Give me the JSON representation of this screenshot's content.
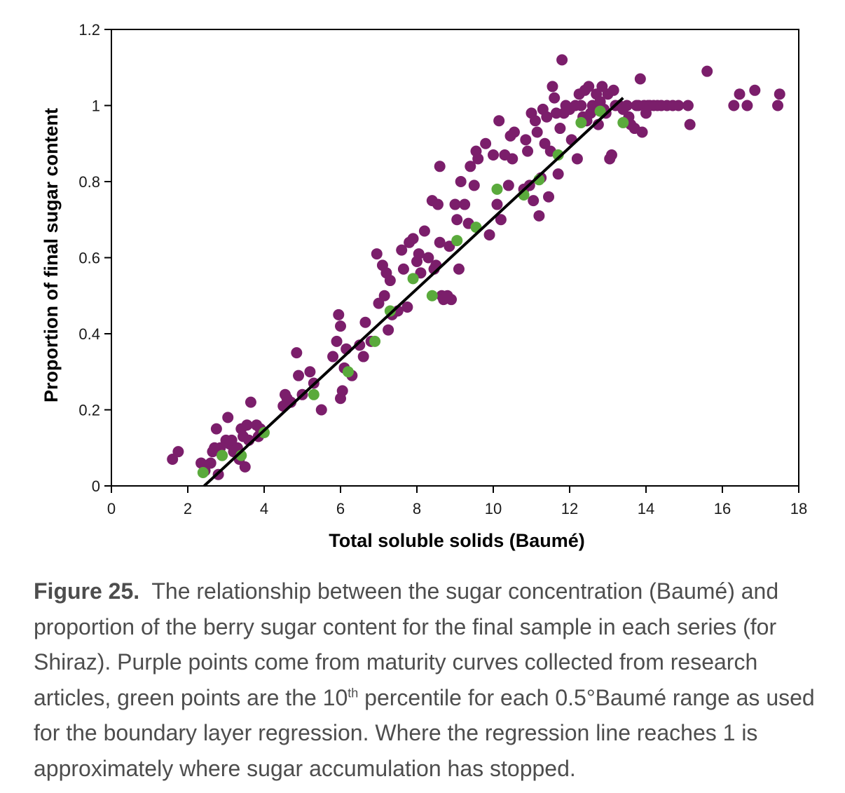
{
  "chart_data": {
    "type": "scatter",
    "xlabel": "Total soluble solids (Baumé)",
    "ylabel": "Proportion of final sugar content",
    "xlim": [
      0,
      18
    ],
    "ylim": [
      0,
      1.2
    ],
    "x_ticks": [
      "0",
      "2",
      "4",
      "6",
      "8",
      "10",
      "12",
      "14",
      "16",
      "18"
    ],
    "y_ticks": [
      "0",
      "0.2",
      "0.4",
      "0.6",
      "0.8",
      "1",
      "1.2"
    ],
    "grid": false,
    "colors": {
      "purple": "#7b1e6b",
      "green": "#5aaa3c",
      "line": "#000000"
    },
    "series": [
      {
        "color": "purple",
        "points": [
          [
            1.6,
            0.07
          ],
          [
            1.75,
            0.09
          ],
          [
            2.35,
            0.06
          ],
          [
            2.45,
            0.04
          ],
          [
            2.6,
            0.06
          ],
          [
            2.65,
            0.09
          ],
          [
            2.7,
            0.1
          ],
          [
            2.75,
            0.15
          ],
          [
            2.8,
            0.03
          ],
          [
            2.85,
            0.1
          ],
          [
            2.9,
            0.08
          ],
          [
            3.0,
            0.12
          ],
          [
            3.05,
            0.18
          ],
          [
            3.1,
            0.11
          ],
          [
            3.15,
            0.12
          ],
          [
            3.2,
            0.09
          ],
          [
            3.3,
            0.1
          ],
          [
            3.35,
            0.07
          ],
          [
            3.4,
            0.15
          ],
          [
            3.45,
            0.13
          ],
          [
            3.5,
            0.05
          ],
          [
            3.55,
            0.16
          ],
          [
            3.6,
            0.12
          ],
          [
            3.65,
            0.22
          ],
          [
            3.8,
            0.16
          ],
          [
            3.85,
            0.13
          ],
          [
            3.9,
            0.15
          ],
          [
            4.5,
            0.21
          ],
          [
            4.55,
            0.24
          ],
          [
            4.6,
            0.23
          ],
          [
            4.7,
            0.22
          ],
          [
            4.85,
            0.35
          ],
          [
            4.9,
            0.29
          ],
          [
            5.0,
            0.24
          ],
          [
            5.2,
            0.3
          ],
          [
            5.3,
            0.27
          ],
          [
            5.5,
            0.2
          ],
          [
            5.8,
            0.34
          ],
          [
            5.9,
            0.38
          ],
          [
            5.95,
            0.45
          ],
          [
            6.0,
            0.42
          ],
          [
            6.0,
            0.23
          ],
          [
            6.05,
            0.25
          ],
          [
            6.1,
            0.31
          ],
          [
            6.15,
            0.36
          ],
          [
            6.3,
            0.29
          ],
          [
            6.5,
            0.37
          ],
          [
            6.6,
            0.34
          ],
          [
            6.65,
            0.43
          ],
          [
            6.8,
            0.38
          ],
          [
            6.95,
            0.61
          ],
          [
            7.0,
            0.48
          ],
          [
            7.1,
            0.58
          ],
          [
            7.15,
            0.5
          ],
          [
            7.2,
            0.56
          ],
          [
            7.25,
            0.41
          ],
          [
            7.3,
            0.54
          ],
          [
            7.35,
            0.45
          ],
          [
            7.5,
            0.46
          ],
          [
            7.6,
            0.62
          ],
          [
            7.65,
            0.57
          ],
          [
            7.75,
            0.47
          ],
          [
            7.8,
            0.64
          ],
          [
            7.9,
            0.65
          ],
          [
            8.0,
            0.59
          ],
          [
            8.05,
            0.61
          ],
          [
            8.1,
            0.56
          ],
          [
            8.2,
            0.67
          ],
          [
            8.3,
            0.6
          ],
          [
            8.4,
            0.75
          ],
          [
            8.45,
            0.57
          ],
          [
            8.5,
            0.58
          ],
          [
            8.55,
            0.74
          ],
          [
            8.6,
            0.84
          ],
          [
            8.6,
            0.64
          ],
          [
            8.65,
            0.5
          ],
          [
            8.7,
            0.49
          ],
          [
            8.8,
            0.5
          ],
          [
            8.85,
            0.63
          ],
          [
            8.9,
            0.49
          ],
          [
            9.0,
            0.74
          ],
          [
            9.05,
            0.7
          ],
          [
            9.1,
            0.57
          ],
          [
            9.15,
            0.8
          ],
          [
            9.25,
            0.74
          ],
          [
            9.35,
            0.69
          ],
          [
            9.4,
            0.84
          ],
          [
            9.5,
            0.79
          ],
          [
            9.55,
            0.88
          ],
          [
            9.6,
            0.86
          ],
          [
            9.8,
            0.9
          ],
          [
            9.9,
            0.66
          ],
          [
            10.0,
            0.87
          ],
          [
            10.1,
            0.74
          ],
          [
            10.15,
            0.96
          ],
          [
            10.2,
            0.7
          ],
          [
            10.3,
            0.87
          ],
          [
            10.4,
            0.79
          ],
          [
            10.45,
            0.92
          ],
          [
            10.5,
            0.86
          ],
          [
            10.55,
            0.93
          ],
          [
            10.8,
            0.78
          ],
          [
            10.85,
            0.91
          ],
          [
            10.9,
            0.88
          ],
          [
            10.95,
            0.79
          ],
          [
            11.0,
            0.98
          ],
          [
            11.05,
            0.75
          ],
          [
            11.1,
            0.96
          ],
          [
            11.15,
            0.93
          ],
          [
            11.2,
            0.71
          ],
          [
            11.25,
            0.81
          ],
          [
            11.3,
            0.99
          ],
          [
            11.35,
            0.9
          ],
          [
            11.4,
            0.97
          ],
          [
            11.45,
            0.76
          ],
          [
            11.5,
            0.88
          ],
          [
            11.55,
            1.05
          ],
          [
            11.6,
            1.02
          ],
          [
            11.65,
            0.98
          ],
          [
            11.7,
            0.82
          ],
          [
            11.75,
            0.94
          ],
          [
            11.8,
            1.12
          ],
          [
            11.85,
            0.98
          ],
          [
            11.9,
            1.0
          ],
          [
            12.0,
            0.99
          ],
          [
            12.05,
            0.91
          ],
          [
            12.15,
            1.0
          ],
          [
            12.2,
            0.86
          ],
          [
            12.25,
            1.03
          ],
          [
            12.3,
            1.0
          ],
          [
            12.35,
            0.97
          ],
          [
            12.4,
            1.04
          ],
          [
            12.45,
            0.96
          ],
          [
            12.5,
            1.05
          ],
          [
            12.55,
            0.98
          ],
          [
            12.6,
            1.0
          ],
          [
            12.65,
            0.99
          ],
          [
            12.7,
            1.03
          ],
          [
            12.75,
            0.95
          ],
          [
            12.8,
            1.01
          ],
          [
            12.85,
            1.05
          ],
          [
            12.9,
            0.99
          ],
          [
            12.95,
            0.98
          ],
          [
            13.0,
            1.03
          ],
          [
            13.05,
            0.86
          ],
          [
            13.1,
            0.87
          ],
          [
            13.15,
            1.04
          ],
          [
            13.2,
            1.0
          ],
          [
            13.3,
            1.0
          ],
          [
            13.4,
            0.99
          ],
          [
            13.5,
            1.0
          ],
          [
            13.55,
            0.97
          ],
          [
            13.6,
            0.95
          ],
          [
            13.7,
            0.94
          ],
          [
            13.75,
            1.0
          ],
          [
            13.8,
            1.0
          ],
          [
            13.85,
            1.07
          ],
          [
            13.9,
            0.93
          ],
          [
            13.95,
            1.0
          ],
          [
            14.0,
            0.98
          ],
          [
            14.05,
            1.0
          ],
          [
            14.1,
            1.0
          ],
          [
            14.2,
            1.0
          ],
          [
            14.3,
            1.0
          ],
          [
            14.4,
            1.0
          ],
          [
            14.55,
            1.0
          ],
          [
            14.7,
            1.0
          ],
          [
            14.85,
            1.0
          ],
          [
            15.1,
            1.0
          ],
          [
            15.15,
            0.95
          ],
          [
            15.6,
            1.09
          ],
          [
            16.3,
            1.0
          ],
          [
            16.45,
            1.03
          ],
          [
            16.65,
            1.0
          ],
          [
            16.85,
            1.04
          ],
          [
            17.45,
            1.0
          ],
          [
            17.5,
            1.03
          ]
        ]
      },
      {
        "color": "green",
        "points": [
          [
            2.4,
            0.035
          ],
          [
            2.9,
            0.08
          ],
          [
            3.4,
            0.08
          ],
          [
            4.0,
            0.14
          ],
          [
            5.3,
            0.24
          ],
          [
            6.2,
            0.3
          ],
          [
            6.9,
            0.38
          ],
          [
            7.3,
            0.46
          ],
          [
            7.9,
            0.545
          ],
          [
            8.4,
            0.5
          ],
          [
            9.05,
            0.645
          ],
          [
            9.55,
            0.68
          ],
          [
            10.1,
            0.78
          ],
          [
            10.8,
            0.765
          ],
          [
            11.2,
            0.805
          ],
          [
            11.7,
            0.87
          ],
          [
            12.3,
            0.955
          ],
          [
            12.8,
            0.985
          ],
          [
            13.4,
            0.955
          ]
        ]
      }
    ],
    "regression_line": {
      "x": [
        2.43,
        13.4
      ],
      "y": [
        0,
        1.02
      ]
    }
  },
  "caption": {
    "label": "Figure 25.",
    "text_part1": "The relationship between the sugar concentration (Baumé) and proportion of the berry sugar content for the final sample in each series (for Shiraz). Purple points come from maturity curves collected from research articles, green points are the 10",
    "superscript": "th",
    "text_part2": " percentile for each 0.5°Baumé range as used for the boundary layer regression. Where the regression line reaches 1 is approximately where sugar accumulation has stopped."
  }
}
